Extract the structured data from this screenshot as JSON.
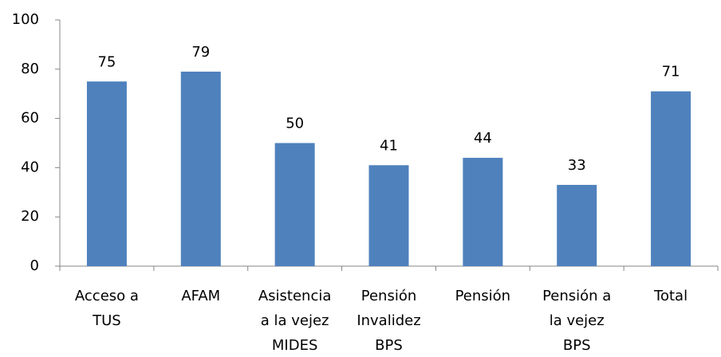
{
  "chart_data": {
    "type": "bar",
    "categories": [
      "Acceso a\nTUS",
      "AFAM",
      "Asistencia\na la vejez\nMIDES",
      "Pensión\nInvalidez\nBPS",
      "Pensión",
      "Pensión a\nla vejez\nBPS",
      "Total"
    ],
    "values": [
      75,
      79,
      50,
      41,
      44,
      33,
      71
    ],
    "color": "#4f81bd",
    "ylim": [
      0,
      100
    ],
    "yticks": [
      0,
      20,
      40,
      60,
      80,
      100
    ],
    "grid": false
  }
}
